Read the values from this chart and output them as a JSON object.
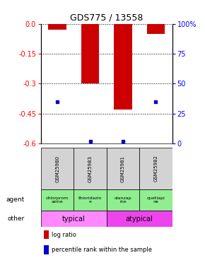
{
  "title": "GDS775 / 13558",
  "samples": [
    "GSM25980",
    "GSM25983",
    "GSM25981",
    "GSM25982"
  ],
  "log_ratios": [
    -0.03,
    -0.3,
    -0.43,
    -0.05
  ],
  "percentile_rank_values": [
    35,
    2,
    2,
    35
  ],
  "ylim_min": -0.6,
  "ylim_max": 0.0,
  "yticks": [
    0.0,
    -0.15,
    -0.3,
    -0.45,
    -0.6
  ],
  "right_yticks": [
    100,
    75,
    50,
    25,
    0
  ],
  "bar_color": "#cc0000",
  "marker_color": "#0000cc",
  "agent_labels": [
    "chlorprom\nazine",
    "thioridazin\ne",
    "olanzap\nine",
    "quetiapi\nne"
  ],
  "sample_bg_color": "#d3d3d3",
  "agent_color": "#90ee90",
  "typical_color": "#ff88ff",
  "atypical_color": "#ee44ee"
}
